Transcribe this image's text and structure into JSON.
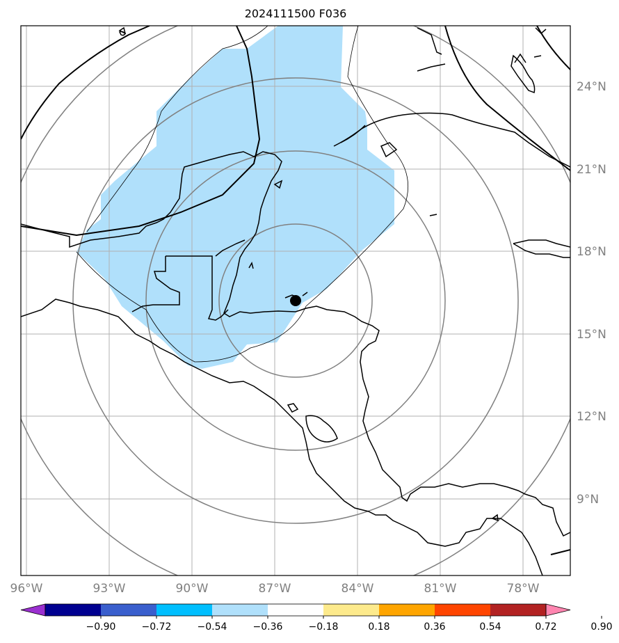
{
  "title": "2024111500 F036",
  "map": {
    "lon_labels": [
      "96°W",
      "93°W",
      "90°W",
      "87°W",
      "84°W",
      "81°W",
      "78°W"
    ],
    "lat_labels": [
      "24°N",
      "21°N",
      "18°N",
      "15°N",
      "12°N",
      "9°N"
    ],
    "lon_values": [
      -96,
      -93,
      -90,
      -87,
      -84,
      -81,
      -78
    ],
    "lat_values": [
      24,
      21,
      18,
      15,
      12,
      9
    ],
    "storm_center": {
      "lon": -86.2,
      "lat": 16.2
    },
    "shading_color": "#b0e0fb",
    "grid_color": "#b0b0b0",
    "ring_color": "#808080"
  },
  "colorbar": {
    "tick_labels": [
      "−0.90",
      "−0.72",
      "−0.54",
      "−0.36",
      "−0.18",
      "0.18",
      "0.36",
      "0.54",
      "0.72",
      "0.90"
    ],
    "colors": [
      "#9b30d0",
      "#000090",
      "#3a5fcd",
      "#00bfff",
      "#b0e0fb",
      "#ffffff",
      "#fdea8c",
      "#ffa500",
      "#ff4500",
      "#b22222",
      "#ff85b0"
    ]
  }
}
